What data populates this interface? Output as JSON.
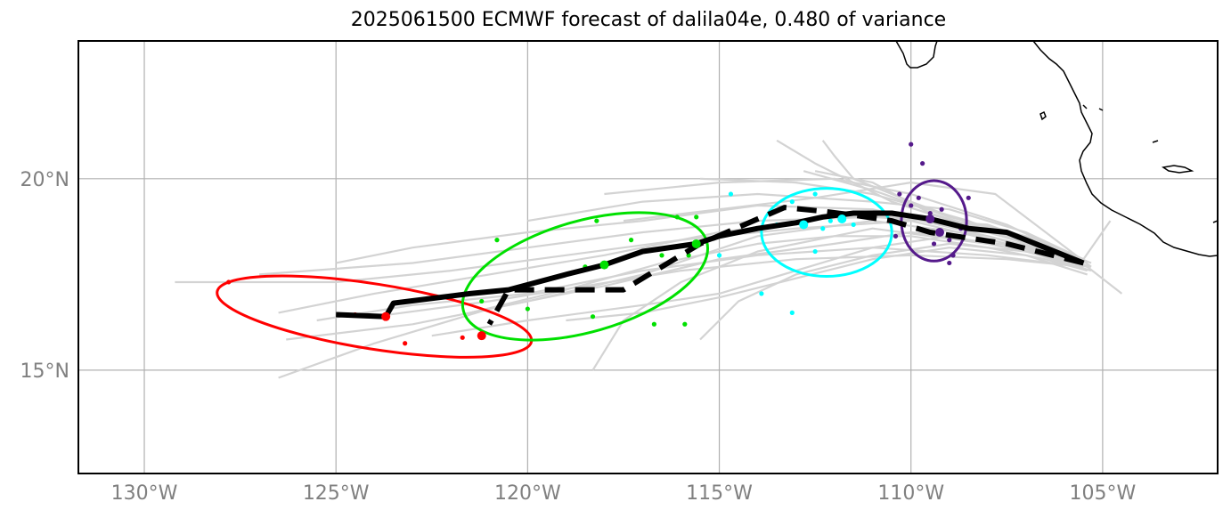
{
  "title": "2025061500 ECMWF forecast of dalila04e, 0.480 of variance",
  "map": {
    "lon_range": [
      -131.72,
      -102.0
    ],
    "lat_range": [
      12.3,
      23.6
    ],
    "lon_ticks": [
      {
        "value": -130,
        "label": "130°W"
      },
      {
        "value": -125,
        "label": "125°W"
      },
      {
        "value": -120,
        "label": "120°W"
      },
      {
        "value": -115,
        "label": "115°W"
      },
      {
        "value": -110,
        "label": "110°W"
      },
      {
        "value": -105,
        "label": "105°W"
      }
    ],
    "lat_ticks": [
      {
        "value": 20,
        "label": "20°N"
      },
      {
        "value": 15,
        "label": "15°N"
      }
    ],
    "grid": true,
    "colors": {
      "ensemble": "#d3d3d3",
      "track": "#000000",
      "grid": "#b0b0b0",
      "cluster_red": "#ff0000",
      "cluster_green": "#00e000",
      "cluster_cyan": "#00ffff",
      "cluster_purple": "#551a8b"
    }
  },
  "chart_data": {
    "type": "map",
    "mean_track": [
      [
        -105.5,
        17.8
      ],
      [
        -106.5,
        18.2
      ],
      [
        -107.5,
        18.6
      ],
      [
        -108.5,
        18.7
      ],
      [
        -109.5,
        18.95
      ],
      [
        -110.5,
        19.1
      ],
      [
        -111.5,
        19.1
      ],
      [
        -112.3,
        19.0
      ],
      [
        -113.0,
        18.85
      ],
      [
        -114.0,
        18.7
      ],
      [
        -115.0,
        18.5
      ],
      [
        -115.6,
        18.3
      ],
      [
        -117.0,
        18.1
      ],
      [
        -118.0,
        17.75
      ],
      [
        -119.0,
        17.5
      ],
      [
        -120.5,
        17.1
      ],
      [
        -121.5,
        17.0
      ],
      [
        -123.5,
        16.75
      ],
      [
        -123.7,
        16.4
      ],
      [
        -125.0,
        16.45
      ]
    ],
    "dashed_track": [
      [
        -105.5,
        17.8
      ],
      [
        -106.5,
        18.05
      ],
      [
        -107.5,
        18.3
      ],
      [
        -108.5,
        18.45
      ],
      [
        -109.5,
        18.6
      ],
      [
        -110.5,
        18.9
      ],
      [
        -111.5,
        19.05
      ],
      [
        -112.3,
        19.15
      ],
      [
        -113.3,
        19.25
      ],
      [
        -115.5,
        18.3
      ],
      [
        -116.0,
        18.0
      ],
      [
        -117.5,
        17.1
      ],
      [
        -120.5,
        17.1
      ],
      [
        -121.0,
        16.2
      ]
    ],
    "ensemble_tracks": [
      [
        [
          -105.3,
          17.7
        ],
        [
          -107.5,
          18.3
        ],
        [
          -110,
          18.9
        ],
        [
          -113,
          18.7
        ],
        [
          -116,
          18.4
        ],
        [
          -119,
          18.0
        ],
        [
          -122,
          17.6
        ],
        [
          -125,
          17.3
        ],
        [
          -129.2,
          17.3
        ]
      ],
      [
        [
          -105.5,
          17.8
        ],
        [
          -108,
          18.5
        ],
        [
          -111,
          19.2
        ],
        [
          -114,
          19.3
        ],
        [
          -117,
          18.9
        ],
        [
          -120,
          18.6
        ],
        [
          -123,
          18.2
        ],
        [
          -125,
          17.8
        ]
      ],
      [
        [
          -105.6,
          17.9
        ],
        [
          -108,
          18.6
        ],
        [
          -110.5,
          19.4
        ],
        [
          -112.5,
          20.4
        ],
        [
          -113.5,
          21.0
        ]
      ],
      [
        [
          -105.6,
          17.9
        ],
        [
          -107.5,
          18.8
        ],
        [
          -110,
          19.6
        ],
        [
          -112,
          20.0
        ],
        [
          -115,
          19.9
        ],
        [
          -118,
          19.6
        ]
      ],
      [
        [
          -105.4,
          17.7
        ],
        [
          -107,
          18.2
        ],
        [
          -110,
          18.6
        ],
        [
          -112,
          18.3
        ],
        [
          -115,
          17.9
        ],
        [
          -118,
          17.2
        ],
        [
          -121,
          16.6
        ],
        [
          -124,
          15.7
        ],
        [
          -126.5,
          14.8
        ]
      ],
      [
        [
          -105.4,
          17.8
        ],
        [
          -108,
          18.3
        ],
        [
          -111,
          18.7
        ],
        [
          -114,
          18.1
        ],
        [
          -116,
          17.3
        ],
        [
          -117.5,
          16.3
        ],
        [
          -118.3,
          15.0
        ]
      ],
      [
        [
          -105.5,
          17.9
        ],
        [
          -108,
          18.5
        ],
        [
          -111,
          18.9
        ],
        [
          -114,
          18.5
        ],
        [
          -117,
          17.5
        ],
        [
          -120,
          16.8
        ],
        [
          -123,
          16.2
        ],
        [
          -126.3,
          15.8
        ]
      ],
      [
        [
          -104.5,
          17.0
        ],
        [
          -105.4,
          17.7
        ],
        [
          -107,
          18.1
        ],
        [
          -109,
          18.5
        ],
        [
          -111,
          18.2
        ],
        [
          -113,
          17.6
        ],
        [
          -115,
          17.0
        ],
        [
          -117,
          16.7
        ],
        [
          -120,
          16.3
        ],
        [
          -122.5,
          15.9
        ]
      ],
      [
        [
          -105.5,
          17.8
        ],
        [
          -107,
          18.3
        ],
        [
          -110,
          19.4
        ],
        [
          -111.5,
          20.0
        ],
        [
          -112,
          20.6
        ],
        [
          -112.3,
          21.0
        ]
      ],
      [
        [
          -105.3,
          17.6
        ],
        [
          -107,
          18.1
        ],
        [
          -109,
          18.3
        ],
        [
          -111,
          18.0
        ],
        [
          -113,
          17.5
        ],
        [
          -114.5,
          16.8
        ],
        [
          -115.5,
          15.8
        ]
      ],
      [
        [
          -104.8,
          18.9
        ],
        [
          -105.5,
          17.9
        ],
        [
          -107,
          18.6
        ],
        [
          -109,
          19.2
        ],
        [
          -111,
          19.4
        ],
        [
          -114,
          19.6
        ],
        [
          -117,
          19.4
        ],
        [
          -120,
          18.9
        ]
      ],
      [
        [
          -105.5,
          17.8
        ],
        [
          -107,
          18.4
        ],
        [
          -109.5,
          19.0
        ],
        [
          -112,
          19.0
        ],
        [
          -115,
          18.6
        ],
        [
          -118,
          18.0
        ],
        [
          -121,
          17.5
        ],
        [
          -124,
          17.0
        ],
        [
          -126.5,
          16.5
        ]
      ],
      [
        [
          -105.3,
          17.7
        ],
        [
          -107.8,
          19.6
        ],
        [
          -110,
          19.9
        ],
        [
          -112.5,
          19.5
        ],
        [
          -115,
          19.2
        ],
        [
          -117.5,
          18.9
        ]
      ],
      [
        [
          -105.5,
          17.8
        ],
        [
          -107.5,
          18.5
        ],
        [
          -109.5,
          19.1
        ],
        [
          -111,
          19.9
        ],
        [
          -112.5,
          20.2
        ]
      ],
      [
        [
          -105.4,
          17.5
        ],
        [
          -107,
          18.0
        ],
        [
          -109,
          18.2
        ],
        [
          -111,
          17.9
        ],
        [
          -113,
          17.4
        ],
        [
          -115,
          16.9
        ],
        [
          -117,
          16.5
        ],
        [
          -119,
          16.3
        ]
      ],
      [
        [
          -105.5,
          17.9
        ],
        [
          -108,
          18.8
        ],
        [
          -111,
          19.0
        ],
        [
          -114,
          18.9
        ],
        [
          -117,
          18.6
        ],
        [
          -120,
          18.2
        ],
        [
          -123,
          17.8
        ],
        [
          -127,
          17.5
        ]
      ],
      [
        [
          -105.4,
          17.6
        ],
        [
          -106.5,
          17.9
        ],
        [
          -108,
          18.2
        ],
        [
          -110,
          18.5
        ],
        [
          -112,
          18.5
        ],
        [
          -114,
          18.3
        ],
        [
          -116.5,
          17.8
        ],
        [
          -119,
          17.1
        ],
        [
          -121.5,
          16.5
        ]
      ],
      [
        [
          -105.5,
          17.7
        ],
        [
          -108,
          18.0
        ],
        [
          -111,
          18.2
        ],
        [
          -114,
          18.0
        ],
        [
          -117,
          17.6
        ],
        [
          -120,
          17.0
        ],
        [
          -123,
          16.7
        ],
        [
          -125.5,
          16.3
        ]
      ],
      [
        [
          -105.5,
          17.8
        ],
        [
          -107,
          18.3
        ],
        [
          -108.5,
          18.9
        ],
        [
          -111,
          19.6
        ],
        [
          -113,
          19.9
        ],
        [
          -115.5,
          20.0
        ]
      ],
      [
        [
          -105.5,
          17.7
        ],
        [
          -107.5,
          17.9
        ],
        [
          -110,
          18.0
        ],
        [
          -113,
          17.9
        ],
        [
          -116,
          17.6
        ],
        [
          -118.5,
          17.2
        ],
        [
          -121,
          16.8
        ],
        [
          -124,
          16.4
        ]
      ],
      [
        [
          -105.3,
          17.8
        ],
        [
          -107,
          18.5
        ],
        [
          -109,
          19.0
        ],
        [
          -111,
          19.7
        ],
        [
          -112.8,
          20.2
        ]
      ]
    ],
    "clusters": [
      {
        "color": "red",
        "center": [
          -123.7,
          16.4
        ],
        "alt_center": [
          -121.2,
          15.9
        ],
        "ellipse": {
          "center": [
            -124.0,
            16.4
          ],
          "lon_radius": 4.15,
          "lat_radius": 0.85,
          "rotation_deg": 9
        },
        "points": [
          [
            -127.8,
            17.3
          ],
          [
            -124.5,
            16.45
          ],
          [
            -123.2,
            15.7
          ],
          [
            -121.7,
            15.85
          ]
        ]
      },
      {
        "color": "green",
        "center": [
          -118.0,
          17.75
        ],
        "alt_center": [
          -115.6,
          18.3
        ],
        "ellipse": {
          "center": [
            -118.5,
            17.45
          ],
          "lon_radius": 3.3,
          "lat_radius": 1.45,
          "rotation_deg": -16
        },
        "points": [
          [
            -120.8,
            18.4
          ],
          [
            -118.2,
            18.9
          ],
          [
            -116.1,
            19.0
          ],
          [
            -118.3,
            16.4
          ],
          [
            -116.7,
            16.2
          ],
          [
            -120.0,
            16.6
          ],
          [
            -119.4,
            17.4
          ],
          [
            -115.6,
            19.0
          ],
          [
            -116.5,
            18.0
          ],
          [
            -117.3,
            18.4
          ],
          [
            -121.2,
            16.8
          ],
          [
            -115.9,
            16.2
          ],
          [
            -118.5,
            17.7
          ],
          [
            -115.8,
            18.0
          ]
        ]
      },
      {
        "color": "cyan",
        "center": [
          -111.8,
          18.95
        ],
        "alt_center": [
          -112.8,
          18.8
        ],
        "ellipse": {
          "center": [
            -112.2,
            18.6
          ],
          "lon_radius": 1.7,
          "lat_radius": 1.15,
          "rotation_deg": 0
        },
        "points": [
          [
            -114.7,
            19.6
          ],
          [
            -113.1,
            19.4
          ],
          [
            -112.5,
            19.6
          ],
          [
            -113.0,
            18.85
          ],
          [
            -112.3,
            18.7
          ],
          [
            -112.5,
            18.1
          ],
          [
            -113.9,
            17.0
          ],
          [
            -113.1,
            16.5
          ],
          [
            -111.5,
            18.8
          ],
          [
            -112.1,
            18.9
          ],
          [
            -113.5,
            18.8
          ],
          [
            -115.0,
            18.0
          ]
        ]
      },
      {
        "color": "purple",
        "center": [
          -109.5,
          18.95
        ],
        "alt_center": [
          -109.25,
          18.6
        ],
        "ellipse": {
          "center": [
            -109.4,
            18.9
          ],
          "lon_radius": 0.85,
          "lat_radius": 1.05,
          "rotation_deg": 0
        },
        "points": [
          [
            -110.0,
            20.9
          ],
          [
            -109.7,
            20.4
          ],
          [
            -110.3,
            19.6
          ],
          [
            -110.0,
            19.3
          ],
          [
            -109.2,
            19.2
          ],
          [
            -108.5,
            19.5
          ],
          [
            -109.0,
            18.4
          ],
          [
            -108.9,
            18.0
          ],
          [
            -110.4,
            18.5
          ],
          [
            -109.4,
            18.3
          ],
          [
            -109.8,
            19.5
          ],
          [
            -109.0,
            17.8
          ],
          [
            -109.5,
            19.1
          ],
          [
            -108.7,
            18.7
          ]
        ]
      }
    ]
  }
}
